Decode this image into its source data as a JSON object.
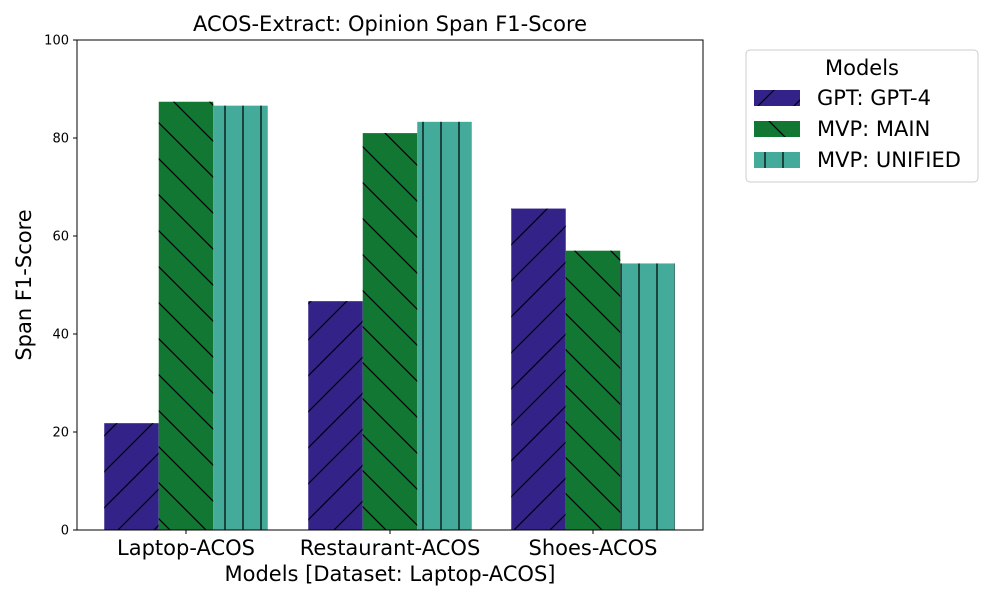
{
  "chart_data": {
    "type": "bar",
    "title": "ACOS-Extract: Opinion Span F1-Score",
    "xlabel": "Models [Dataset: Laptop-ACOS]",
    "ylabel": "Span F1-Score",
    "ylim": [
      0,
      100
    ],
    "yticks": [
      "0",
      "20",
      "40",
      "60",
      "80",
      "100"
    ],
    "categories": [
      "Laptop-ACOS",
      "Restaurant-ACOS",
      "Shoes-ACOS"
    ],
    "series": [
      {
        "name": "GPT: GPT-4",
        "values": [
          21.8,
          46.7,
          65.6
        ],
        "color": "#332288",
        "hatch": "forward-diagonal"
      },
      {
        "name": "MVP: MAIN",
        "values": [
          87.4,
          81.0,
          57.0
        ],
        "color": "#117733",
        "hatch": "back-diagonal"
      },
      {
        "name": "MVP: UNIFIED",
        "values": [
          86.6,
          83.3,
          54.4
        ],
        "color": "#44AA99",
        "hatch": "vertical"
      }
    ],
    "legend": {
      "title": "Models",
      "placement": "outside-top-right"
    },
    "grid": false
  }
}
